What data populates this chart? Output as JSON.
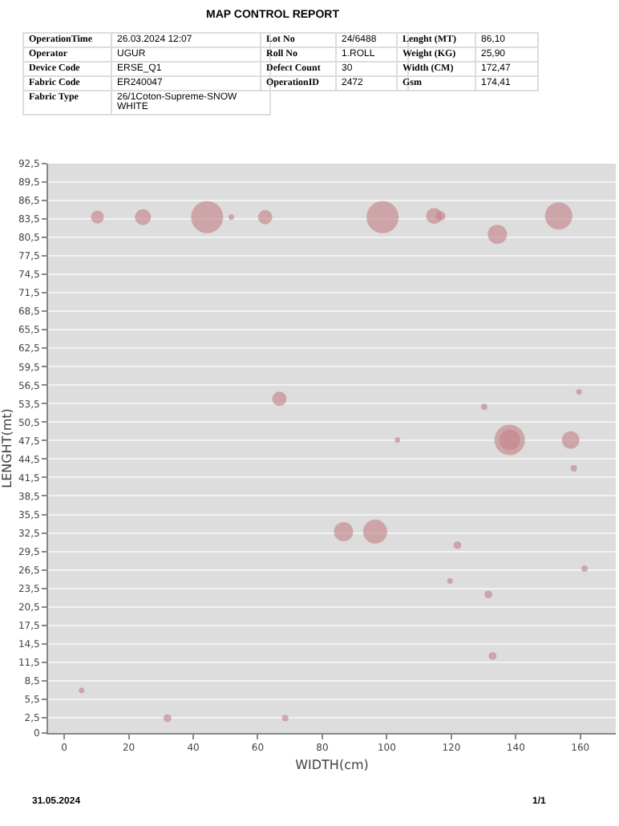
{
  "chart_data": {
    "type": "bubble",
    "title": "MAP CONTROL REPORT",
    "xlabel": "WIDTH(cm)",
    "ylabel": "LENGHT(mt)",
    "annotations": [
      "OperationTime",
      "26.03.2024 12:07",
      "Operator",
      "UGUR",
      "Device Code",
      "ERSE_Q1",
      "Fabric Code",
      "ER240047",
      "Fabric Type",
      "26/1Coton-Supreme-SNOW WHITE",
      "Lot No",
      "24/6488",
      "Roll No",
      "1.ROLL",
      "Defect Count",
      "30",
      "OperationID",
      "2472",
      "Lenght (MT)",
      "86,10",
      "Weight (KG)",
      "25,90",
      "Width (CM)",
      "172,47",
      "Gsm",
      "174,41",
      "31.05.2024",
      "1/1"
    ],
    "series": [
      {
        "color": "#c4868b",
        "x": [
          10.3,
          24.4,
          44.3,
          51.8,
          62.3,
          66.7,
          98.7,
          114.7,
          116.7,
          134.3,
          153.3,
          159.6,
          130.2,
          103.3,
          138.1,
          138.1,
          157,
          158,
          86.6,
          96.4,
          121.9,
          161.3,
          119.6,
          131.5,
          132.8,
          5.4,
          32,
          68.5
        ],
        "values": [
          83.8,
          83.8,
          83.8,
          83.8,
          83.8,
          54.3,
          83.8,
          84,
          84,
          81,
          84,
          55.4,
          53,
          47.6,
          47.6,
          47.6,
          47.6,
          43,
          32.7,
          32.7,
          30.5,
          26.7,
          24.7,
          22.5,
          12.5,
          6.9,
          2.4,
          2.4
        ],
        "sizes": [
          0.16,
          0.25,
          1,
          0.03,
          0.2,
          0.2,
          1,
          0.25,
          0.09,
          0.36,
          0.72,
          0.03,
          0.04,
          0.03,
          0.42,
          0.9,
          0.3,
          0.04,
          0.36,
          0.56,
          0.06,
          0.04,
          0.03,
          0.06,
          0.06,
          0.03,
          0.06,
          0.04
        ]
      }
    ],
    "xlim": [
      -5,
      171
    ],
    "xticks": [
      0,
      20,
      40,
      60,
      80,
      100,
      120,
      140,
      160
    ],
    "ylim": [
      0,
      92.5
    ],
    "yticks": [
      0,
      {
        "value": 2.5,
        "label": "2,5"
      },
      {
        "value": 5.5,
        "label": "5,5"
      },
      {
        "value": 8.5,
        "label": "8,5"
      },
      {
        "value": 11.5,
        "label": "11,5"
      },
      {
        "value": 14.5,
        "label": "14,5"
      },
      {
        "value": 17.5,
        "label": "17,5"
      },
      {
        "value": 20.5,
        "label": "20,5"
      },
      {
        "value": 23.5,
        "label": "23,5"
      },
      {
        "value": 26.5,
        "label": "26,5"
      },
      {
        "value": 29.5,
        "label": "29,5"
      },
      {
        "value": 32.5,
        "label": "32,5"
      },
      {
        "value": 35.5,
        "label": "35,5"
      },
      {
        "value": 38.5,
        "label": "38,5"
      },
      {
        "value": 41.5,
        "label": "41,5"
      },
      {
        "value": 44.5,
        "label": "44,5"
      },
      {
        "value": 47.5,
        "label": "47,5"
      },
      {
        "value": 50.5,
        "label": "50,5"
      },
      {
        "value": 53.5,
        "label": "53,5"
      },
      {
        "value": 56.5,
        "label": "56,5"
      },
      {
        "value": 59.5,
        "label": "59,5"
      },
      {
        "value": 62.5,
        "label": "62,5"
      },
      {
        "value": 65.5,
        "label": "65,5"
      },
      {
        "value": 68.5,
        "label": "68,5"
      },
      {
        "value": 71.5,
        "label": "71,5"
      },
      {
        "value": 74.5,
        "label": "74,5"
      },
      {
        "value": 77.5,
        "label": "77,5"
      },
      {
        "value": 80.5,
        "label": "80,5"
      },
      {
        "value": 83.5,
        "label": "83,5"
      },
      {
        "value": 86.5,
        "label": "86,5"
      },
      {
        "value": 89.5,
        "label": "89,5"
      },
      {
        "value": 92.5,
        "label": "92,5"
      }
    ],
    "grid": "y"
  }
}
